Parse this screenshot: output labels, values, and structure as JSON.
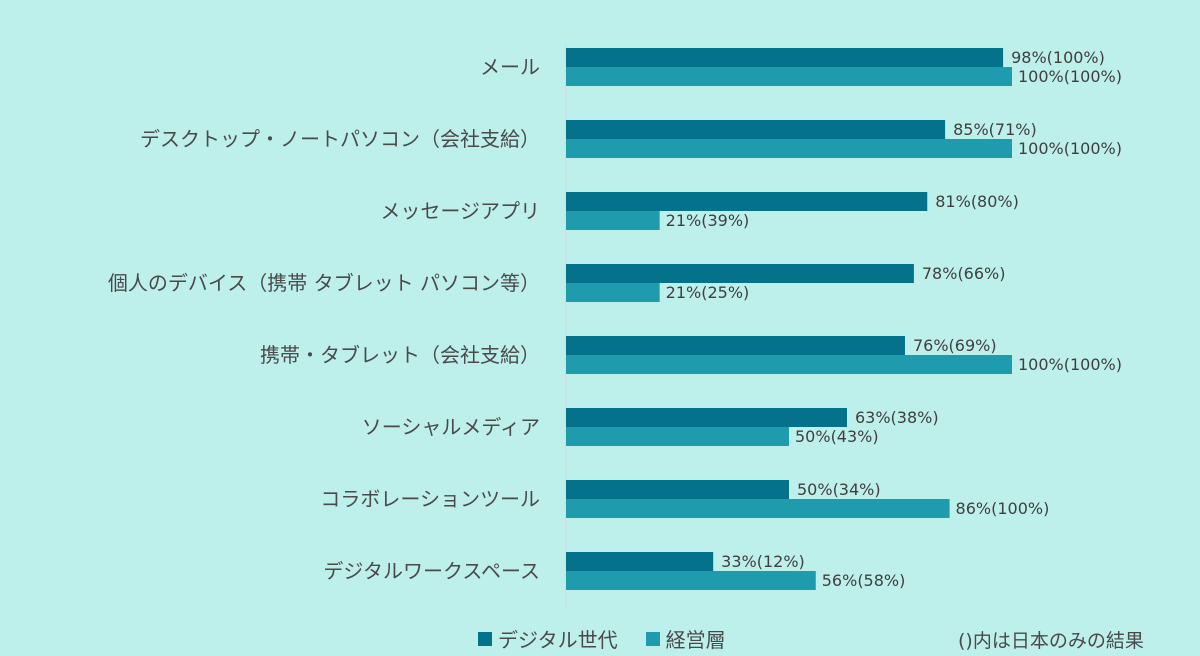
{
  "chart_data": {
    "type": "bar",
    "orientation": "horizontal",
    "categories": [
      "メール",
      "デスクトップ・ノートパソコン（会社支給）",
      "メッセージアプリ",
      "個人のデバイス（携帯 タブレット パソコン等）",
      "携帯・タブレット（会社支給）",
      "ソーシャルメディア",
      "コラボレーションツール",
      "デジタルワークスペース"
    ],
    "series": [
      {
        "name": "デジタル世代",
        "color": "#03728a",
        "values": [
          98,
          85,
          81,
          78,
          76,
          63,
          50,
          33
        ],
        "labels": [
          "98%(100%)",
          "85%(71%)",
          "81%(80%)",
          "78%(66%)",
          "76%(69%)",
          "63%(38%)",
          "50%(34%)",
          "33%(12%)"
        ]
      },
      {
        "name": "経営層",
        "color": "#1e9cae",
        "values": [
          100,
          100,
          21,
          21,
          100,
          50,
          86,
          56
        ],
        "labels": [
          "100%(100%)",
          "100%(100%)",
          "21%(39%)",
          "21%(25%)",
          "100%(100%)",
          "50%(43%)",
          "86%(100%)",
          "56%(58%)"
        ]
      }
    ],
    "xlim": [
      0,
      100
    ],
    "legend_position": "bottom",
    "grid": false,
    "note": "()内は日本のみの結果"
  }
}
